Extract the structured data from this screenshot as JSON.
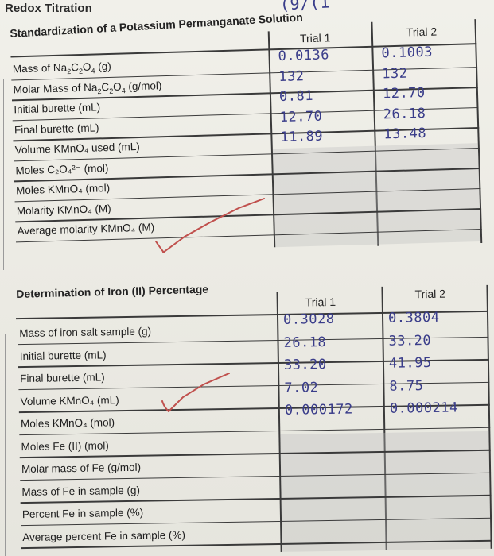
{
  "page": {
    "title": "Redox Titration",
    "margin_scribble": "(9/(1"
  },
  "standardization": {
    "heading": "Standardization of a Potassium Permanganate Solution",
    "col_trial1": "Trial 1",
    "col_trial2": "Trial 2",
    "rows": [
      {
        "label_pre": "Mass of Na",
        "label_sub": "2",
        "label_mid": "C",
        "label_sub2": "2",
        "label_mid2": "O",
        "label_sub3": "4",
        "label_post": " (g)",
        "t1": "0.0136",
        "t2": "0.1003"
      },
      {
        "label_pre": "Molar Mass of Na",
        "label_sub": "2",
        "label_mid": "C",
        "label_sub2": "2",
        "label_mid2": "O",
        "label_sub3": "4",
        "label_post": " (g/mol)",
        "t1": "132",
        "t2": "132"
      },
      {
        "label_text": "Initial burette (mL)",
        "t1": "0.81",
        "t2": "12.70"
      },
      {
        "label_text": "Final burette (mL)",
        "t1": "12.70",
        "t2": "26.18"
      },
      {
        "label_text": "Volume KMnO₄ used (mL)",
        "t1": "11.89",
        "t2": "13.48"
      },
      {
        "label_text": "Moles C₂O₄²⁻ (mol)",
        "t1": "",
        "t2": ""
      },
      {
        "label_text": "Moles KMnO₄ (mol)",
        "t1": "",
        "t2": ""
      },
      {
        "label_text": "Molarity KMnO₄ (M)",
        "t1": "",
        "t2": ""
      },
      {
        "label_text": "Average molarity KMnO₄ (M)",
        "t1": "",
        "t2": ""
      }
    ]
  },
  "iron": {
    "heading": "Determination of Iron (II) Percentage",
    "col_trial1": "Trial 1",
    "col_trial2": "Trial 2",
    "rows": [
      {
        "label_text": "Mass of iron salt sample (g)",
        "t1": "0.3028",
        "t2": "0.3804"
      },
      {
        "label_text": "Initial burette (mL)",
        "t1": "26.18",
        "t2": "33.20"
      },
      {
        "label_text": "Final burette (mL)",
        "t1": "33.20",
        "t2": "41.95"
      },
      {
        "label_text": "Volume KMnO₄ (mL)",
        "t1": "7.02",
        "t2": "8.75"
      },
      {
        "label_text": "Moles KMnO₄ (mol)",
        "t1": "0.000172",
        "t2": "0.000214"
      },
      {
        "label_text": "Moles Fe (II) (mol)",
        "t1": "",
        "t2": ""
      },
      {
        "label_text": "Molar mass of Fe (g/mol)",
        "t1": "",
        "t2": ""
      },
      {
        "label_text": "Mass of Fe in sample (g)",
        "t1": "",
        "t2": ""
      },
      {
        "label_text": "Percent Fe in sample (%)",
        "t1": "",
        "t2": ""
      },
      {
        "label_text": "Average percent Fe in sample (%)",
        "t1": "",
        "t2": ""
      }
    ]
  },
  "colors": {
    "ink": "#3a3d8a",
    "check_mark": "#c0504d"
  }
}
